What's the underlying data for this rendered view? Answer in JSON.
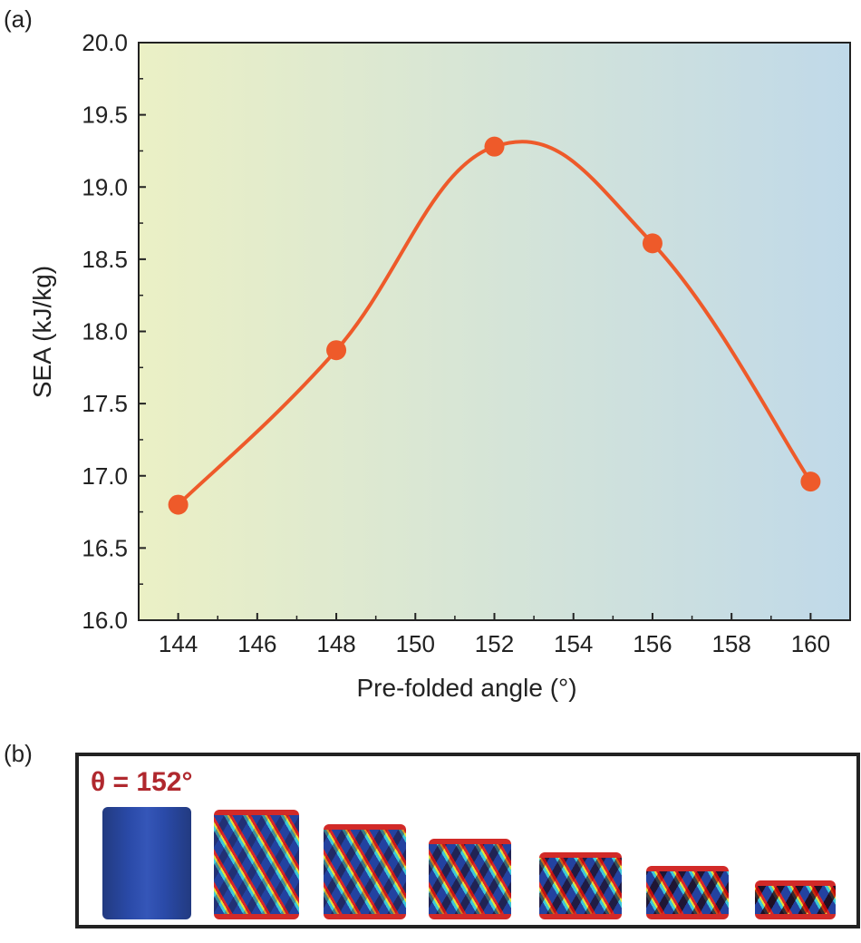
{
  "panel_a_label": "(a)",
  "panel_b_label": "(b)",
  "chart_data": {
    "type": "line",
    "xlabel": "Pre-folded angle (°)",
    "ylabel": "SEA (kJ/kg)",
    "x": [
      144,
      148,
      152,
      156,
      160
    ],
    "y": [
      16.8,
      17.87,
      19.28,
      18.61,
      16.96
    ],
    "xlim": [
      143,
      161
    ],
    "ylim": [
      16.0,
      20.0
    ],
    "xticks": [
      "144",
      "146",
      "148",
      "150",
      "152",
      "154",
      "156",
      "158",
      "160"
    ],
    "yticks": [
      "16.0",
      "16.5",
      "17.0",
      "17.5",
      "18.0",
      "18.5",
      "19.0",
      "19.5",
      "20.0"
    ],
    "grid": false,
    "line_color": "#ee5a2a",
    "background_gradient": [
      "#ebf0c5",
      "#c0d9e9"
    ]
  },
  "panel_b": {
    "annotation": "θ = 152°",
    "annotation_color": "#b0282e",
    "frames": 7
  }
}
